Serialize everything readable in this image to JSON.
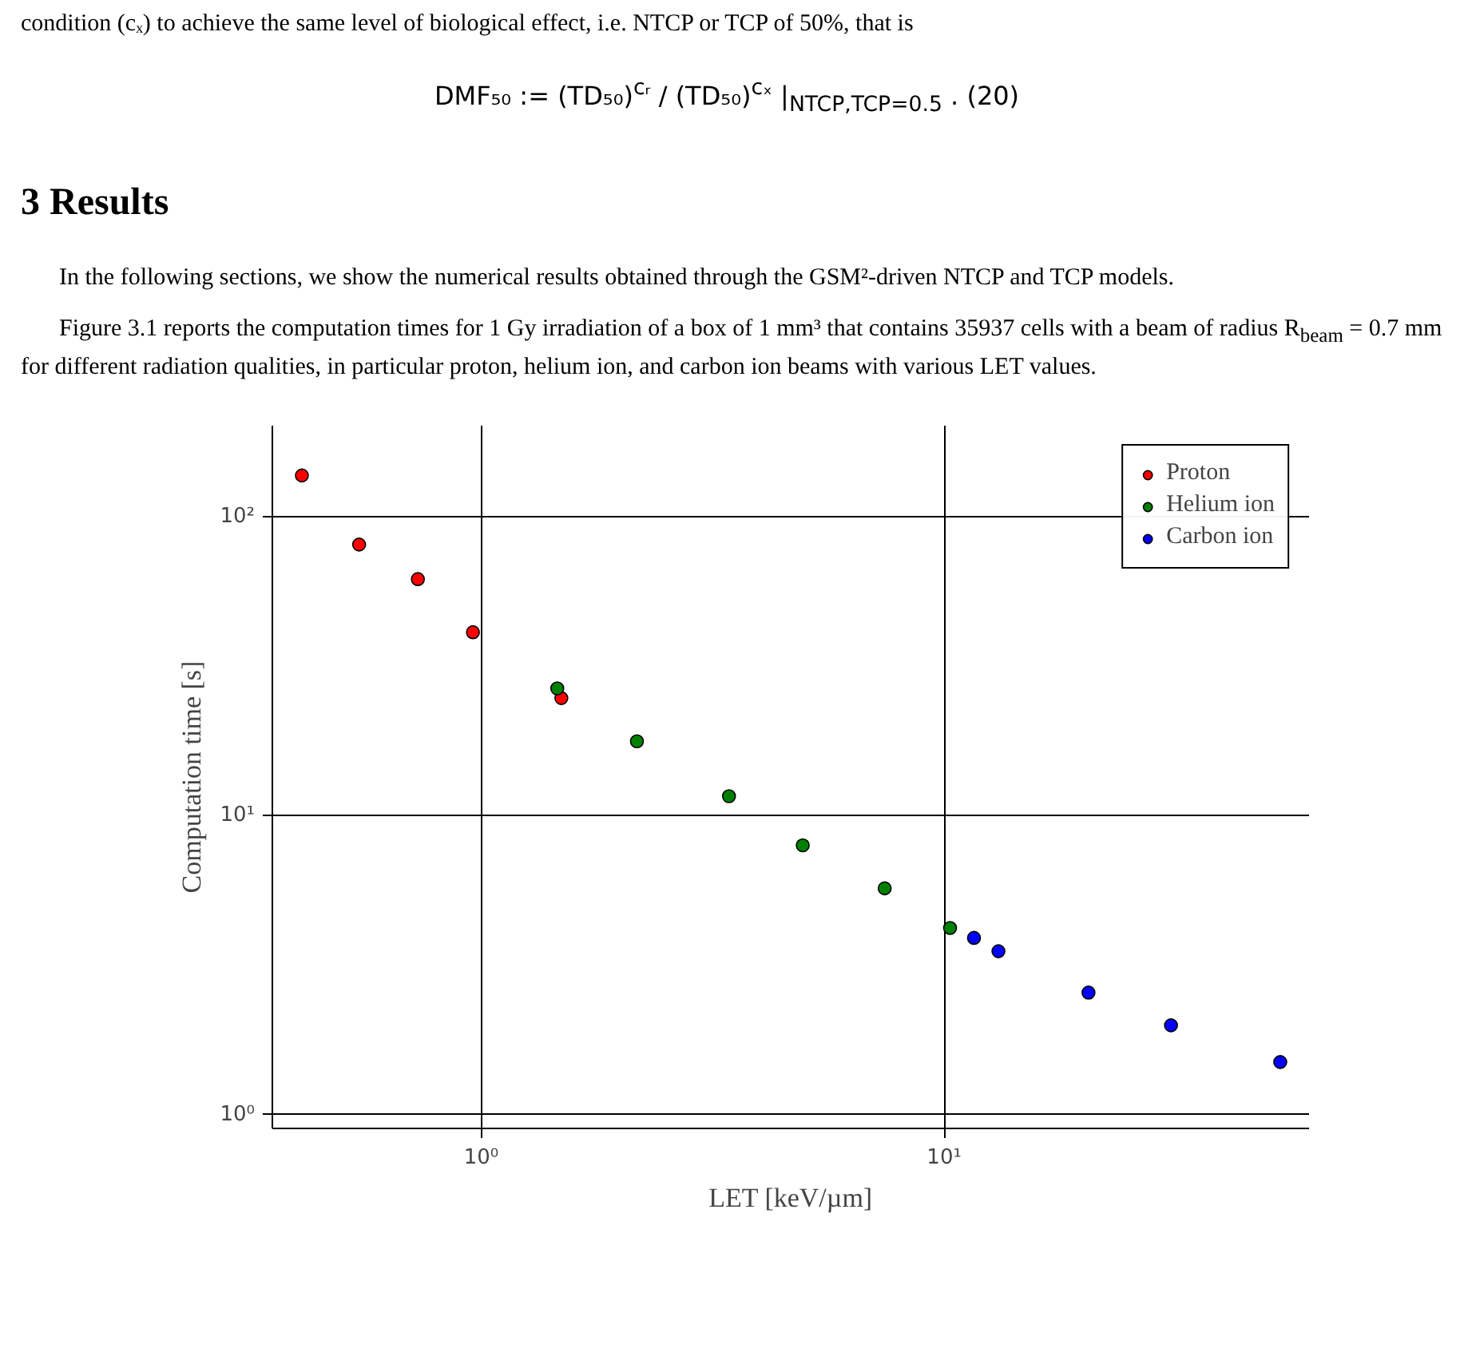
{
  "chart_data": {
    "type": "scatter",
    "xlabel": "LET [keV/µm]",
    "ylabel": "Computation time [s]",
    "log": "xy",
    "grid": true,
    "legend": "top right",
    "marker": "circle",
    "xlim": [
      0.354,
      61.4
    ],
    "ylim": [
      0.9,
      201
    ],
    "xticks": [
      {
        "value": 1,
        "label": "10⁰"
      },
      {
        "value": 10,
        "label": "10¹"
      }
    ],
    "yticks": [
      {
        "value": 1,
        "label": "10⁰"
      },
      {
        "value": 10,
        "label": "10¹"
      },
      {
        "value": 100,
        "label": "10²"
      }
    ],
    "series": [
      {
        "name": "Proton",
        "color": "#ff0000",
        "x": [
          0.41,
          0.545,
          0.73,
          0.96,
          1.49
        ],
        "values": [
          137,
          80.5,
          61.7,
          41,
          24.7
        ]
      },
      {
        "name": "Helium ion",
        "color": "#008000",
        "x": [
          1.46,
          2.17,
          3.43,
          4.95,
          7.44,
          10.3
        ],
        "values": [
          26.6,
          17.7,
          11.6,
          7.95,
          5.71,
          4.21
        ]
      },
      {
        "name": "Carbon ion",
        "color": "#0000ff",
        "x": [
          11.6,
          13.1,
          20.5,
          30.9,
          53.2
        ],
        "values": [
          3.9,
          3.52,
          2.56,
          1.99,
          1.5
        ]
      }
    ],
    "annotations": [
      "condition (cₓ) to achieve the same level of biological effect, i.e. NTCP or TCP of 50%, that is",
      "DMF₅₀ := (TD₅₀)$^{cᵣ}$ / (TD₅₀)$^{cₓ}$ |$_{NTCP,TCP=0.5}$ .    (20)",
      "3   Results",
      "In the following sections, we show the numerical results obtained through the GSM²-driven NTCP and TCP models.",
      "Figure 3.1 reports the computation times for 1 Gy irradiation of a box of 1 mm³ that contains 35937 cells with a beam of radius R$_{beam}$ = 0.7 mm for different radiation qualities, in particular proton, helium ion, and carbon ion beams with various LET values."
    ]
  }
}
